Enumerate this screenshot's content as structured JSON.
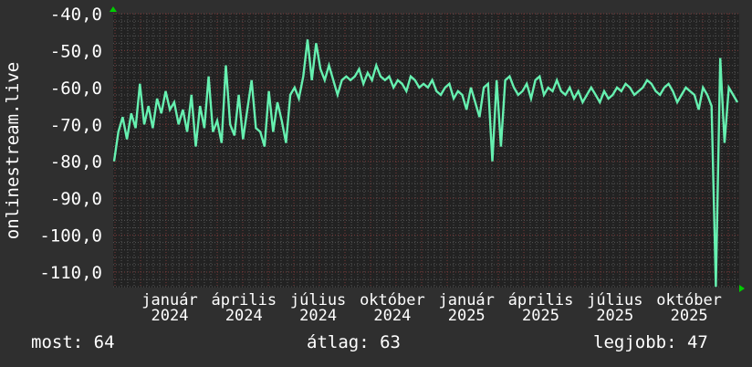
{
  "chart_data": {
    "type": "line",
    "ylabel": "onlinestream.live",
    "ylim": [
      -114,
      -40
    ],
    "yticks": [
      "-40,0",
      "-50,0",
      "-60,0",
      "-70,0",
      "-80,0",
      "-90,0",
      "-100,0",
      "-110,0"
    ],
    "ytick_values": [
      -40,
      -50,
      -60,
      -70,
      -80,
      -90,
      -100,
      -110
    ],
    "xtick_labels": [
      "január 2024",
      "április 2024",
      "július 2024",
      "október 2024",
      "január 2025",
      "április 2025",
      "július 2025",
      "október 2025"
    ],
    "grid": true,
    "series": [
      {
        "color": "#66f0b0",
        "values": [
          -80,
          -72,
          -68,
          -74,
          -67,
          -71,
          -59,
          -70,
          -65,
          -71,
          -63,
          -67,
          -61,
          -66,
          -64,
          -70,
          -66,
          -72,
          -62,
          -76,
          -65,
          -71,
          -57,
          -72,
          -69,
          -75,
          -54,
          -70,
          -73,
          -62,
          -74,
          -66,
          -58,
          -71,
          -72,
          -76,
          -61,
          -72,
          -64,
          -69,
          -75,
          -62,
          -60,
          -63,
          -57,
          -47,
          -58,
          -48,
          -55,
          -58,
          -54,
          -58,
          -62,
          -58,
          -57,
          -58,
          -57,
          -55,
          -59,
          -56,
          -58,
          -54,
          -57,
          -58,
          -57,
          -60,
          -58,
          -59,
          -61,
          -57,
          -58,
          -60,
          -59,
          -60,
          -58,
          -61,
          -62,
          -60,
          -59,
          -63,
          -61,
          -62,
          -66,
          -60,
          -64,
          -68,
          -60,
          -59,
          -80,
          -58,
          -76,
          -58,
          -57,
          -60,
          -62,
          -61,
          -59,
          -63,
          -58,
          -57,
          -62,
          -60,
          -61,
          -58,
          -61,
          -62,
          -60,
          -63,
          -61,
          -64,
          -62,
          -60,
          -62,
          -64,
          -61,
          -63,
          -62,
          -60,
          -61,
          -59,
          -60,
          -62,
          -61,
          -60,
          -58,
          -59,
          -61,
          -62,
          -60,
          -59,
          -61,
          -64,
          -62,
          -60,
          -61,
          -62,
          -66,
          -60,
          -62,
          -65,
          -114,
          -52,
          -75,
          -60,
          -62,
          -64
        ]
      }
    ]
  },
  "legend": {
    "current": "most: 64",
    "average": "átlag: 63",
    "best": "legjobb: 47"
  }
}
